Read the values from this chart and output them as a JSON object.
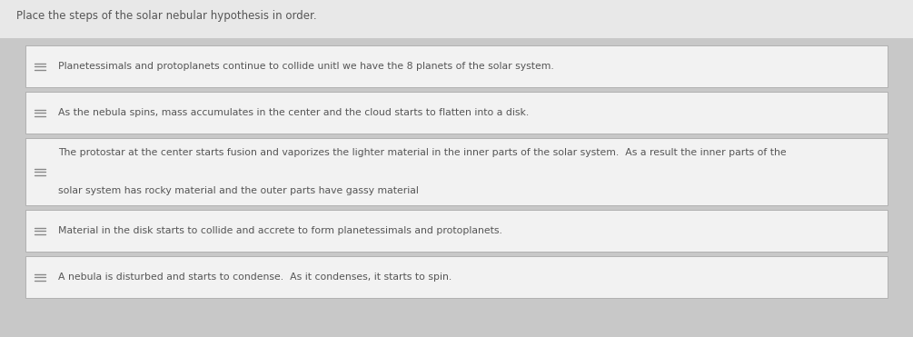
{
  "title": "Place the steps of the solar nebular hypothesis in order.",
  "title_fontsize": 8.5,
  "title_color": "#555555",
  "background_color": "#c8c8c8",
  "top_bg_color": "#e8e8e8",
  "box_bg_color": "#f2f2f2",
  "box_border_color": "#aaaaaa",
  "text_color": "#555555",
  "icon_color": "#888888",
  "items": [
    {
      "text": "Planetessimals and protoplanets continue to collide unitl we have the 8 planets of the solar system.",
      "line2": null
    },
    {
      "text": "As the nebula spins, mass accumulates in the center and the cloud starts to flatten into a disk.",
      "line2": null
    },
    {
      "text": "The protostar at the center starts fusion and vaporizes the lighter material in the inner parts of the solar system.  As a result the inner parts of the",
      "line2": "solar system has rocky material and the outer parts have gassy material"
    },
    {
      "text": "Material in the disk starts to collide and accrete to form planetessimals and protoplanets.",
      "line2": null
    },
    {
      "text": "A nebula is disturbed and starts to condense.  As it condenses, it starts to spin.",
      "line2": null
    }
  ],
  "item_fontsize": 7.8,
  "fig_width": 10.05,
  "fig_height": 3.71,
  "dpi": 100
}
